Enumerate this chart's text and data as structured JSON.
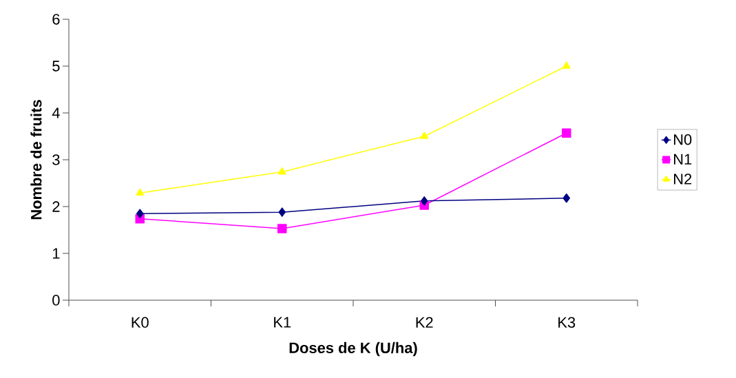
{
  "chart_data": {
    "type": "line",
    "xlabel": "Doses de K (U/ha)",
    "ylabel": "Nombre de fruits",
    "categories": [
      "K0",
      "K1",
      "K2",
      "K3"
    ],
    "series": [
      {
        "name": "N0",
        "color": "#000080",
        "marker": "diamond",
        "values": [
          1.85,
          1.88,
          2.12,
          2.18
        ]
      },
      {
        "name": "N1",
        "color": "#ff00ff",
        "marker": "square",
        "values": [
          1.74,
          1.53,
          2.03,
          3.57
        ]
      },
      {
        "name": "N2",
        "color": "#ffff00",
        "marker": "triangle",
        "values": [
          2.29,
          2.74,
          3.5,
          5.0
        ]
      }
    ],
    "ylim": [
      0,
      6
    ],
    "yticks": [
      0,
      1,
      2,
      3,
      4,
      5,
      6
    ],
    "grid": false,
    "legend": "right",
    "line_style": "solid"
  }
}
